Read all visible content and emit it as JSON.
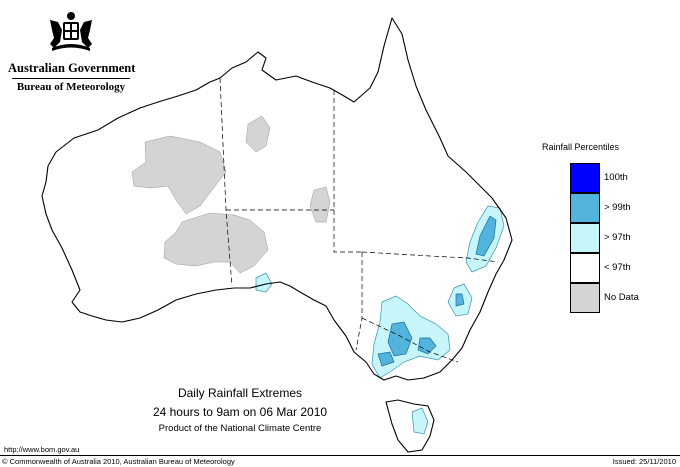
{
  "header": {
    "government": "Australian Government",
    "bureau": "Bureau of Meteorology",
    "crest_icon": "coat-of-arms-icon"
  },
  "legend": {
    "title": "Rainfall Percentiles",
    "items": [
      {
        "label": "100th",
        "color": "#0000ff"
      },
      {
        "label": "> 99th",
        "color": "#52b3dd"
      },
      {
        "label": "> 97th",
        "color": "#c6f6fa"
      },
      {
        "label": "< 97th",
        "color": "#ffffff"
      },
      {
        "label": "No Data",
        "color": "#d4d4d4"
      }
    ]
  },
  "caption": {
    "title": "Daily Rainfall Extremes",
    "subtitle": "24 hours to 9am on 06 Mar 2010",
    "product": "Product of the National Climate Centre"
  },
  "footer": {
    "url": "http://www.bom.gov.au",
    "copyright": "© Commonwealth of Australia 2010, Australian Bureau of Meteorology",
    "issued": "Issued: 25/11/2010"
  }
}
